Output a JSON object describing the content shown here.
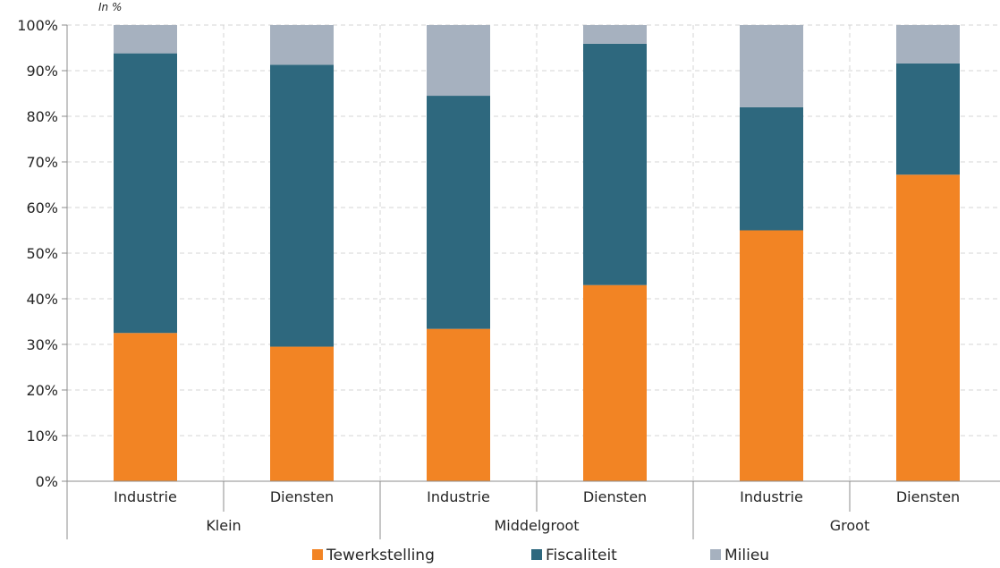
{
  "chart_data": {
    "type": "bar",
    "stacked": true,
    "unit_label": "In %",
    "groups": [
      "Klein",
      "Middelgroot",
      "Groot"
    ],
    "categories": [
      "Industrie",
      "Diensten",
      "Industrie",
      "Diensten",
      "Industrie",
      "Diensten"
    ],
    "category_group": [
      0,
      0,
      1,
      1,
      2,
      2
    ],
    "series": [
      {
        "name": "Tewerkstelling",
        "color": "#f28424",
        "values": [
          32.5,
          29.5,
          33.4,
          43.0,
          55.0,
          67.2
        ]
      },
      {
        "name": "Fiscaliteit",
        "color": "#2e687e",
        "values": [
          61.3,
          61.8,
          51.1,
          52.9,
          27.0,
          24.4
        ]
      },
      {
        "name": "Milieu",
        "color": "#a6b1bf",
        "values": [
          6.2,
          8.7,
          15.5,
          4.1,
          18.0,
          8.4
        ]
      }
    ],
    "yticks": [
      "0%",
      "10%",
      "20%",
      "30%",
      "40%",
      "50%",
      "60%",
      "70%",
      "80%",
      "90%",
      "100%"
    ],
    "ylim": [
      0,
      100
    ],
    "grid": true,
    "legend_position": "bottom"
  }
}
